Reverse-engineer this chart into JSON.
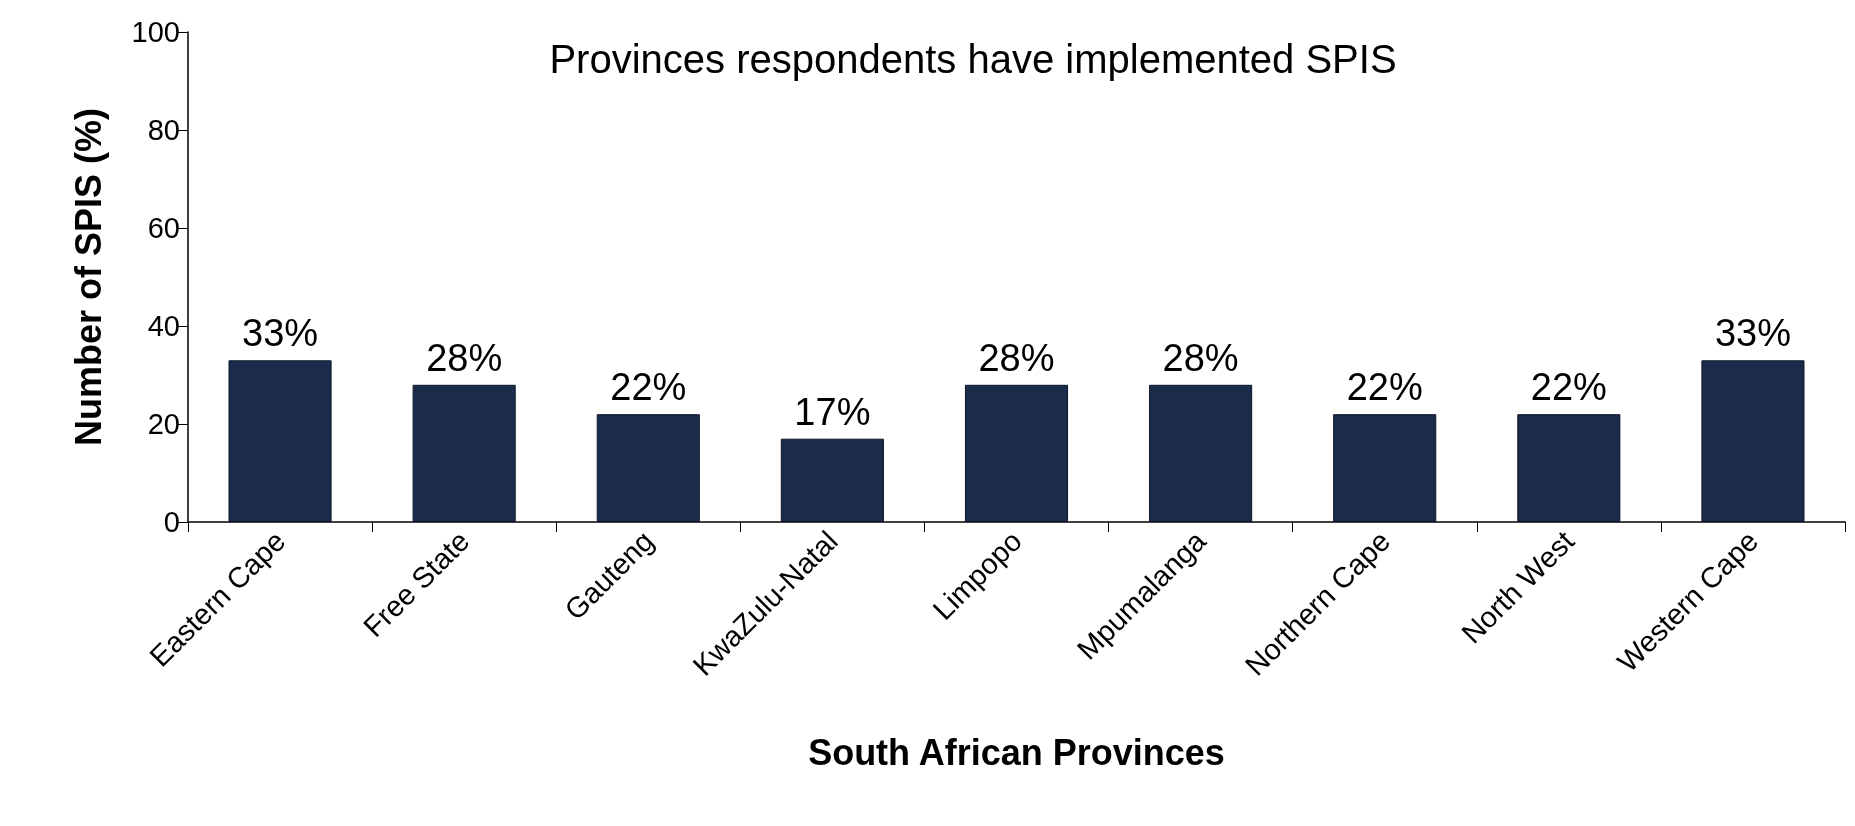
{
  "chart_data": {
    "type": "bar",
    "title": "Provinces respondents have implemented SPIS",
    "xlabel": "South African Provinces",
    "ylabel": "Number of SPIS (%)",
    "categories": [
      "Eastern Cape",
      "Free State",
      "Gauteng",
      "KwaZulu-Natal",
      "Limpopo",
      "Mpumalanga",
      "Northern Cape",
      "North West",
      "Western Cape"
    ],
    "values": [
      33,
      28,
      22,
      17,
      28,
      28,
      22,
      22,
      33
    ],
    "value_labels": [
      "33%",
      "28%",
      "22%",
      "17%",
      "28%",
      "28%",
      "22%",
      "22%",
      "33%"
    ],
    "color": "#1b2c4a",
    "ylim": [
      0,
      100
    ],
    "yticks": [
      0,
      20,
      40,
      60,
      80,
      100
    ],
    "grid": false
  }
}
